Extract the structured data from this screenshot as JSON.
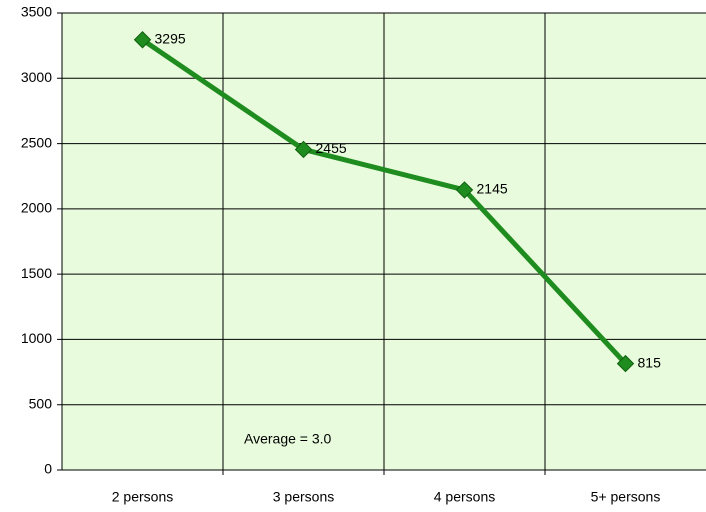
{
  "chart_data": {
    "type": "line",
    "categories": [
      "2 persons",
      "3 persons",
      "4 persons",
      "5+ persons"
    ],
    "values": [
      3295,
      2455,
      2145,
      815
    ],
    "color": "#1e8c1e",
    "ylim": [
      0,
      3500
    ],
    "yticks": [
      0,
      500,
      1000,
      1500,
      2000,
      2500,
      3000,
      3500
    ],
    "grid": true,
    "annotation": "Average = 3.0"
  }
}
